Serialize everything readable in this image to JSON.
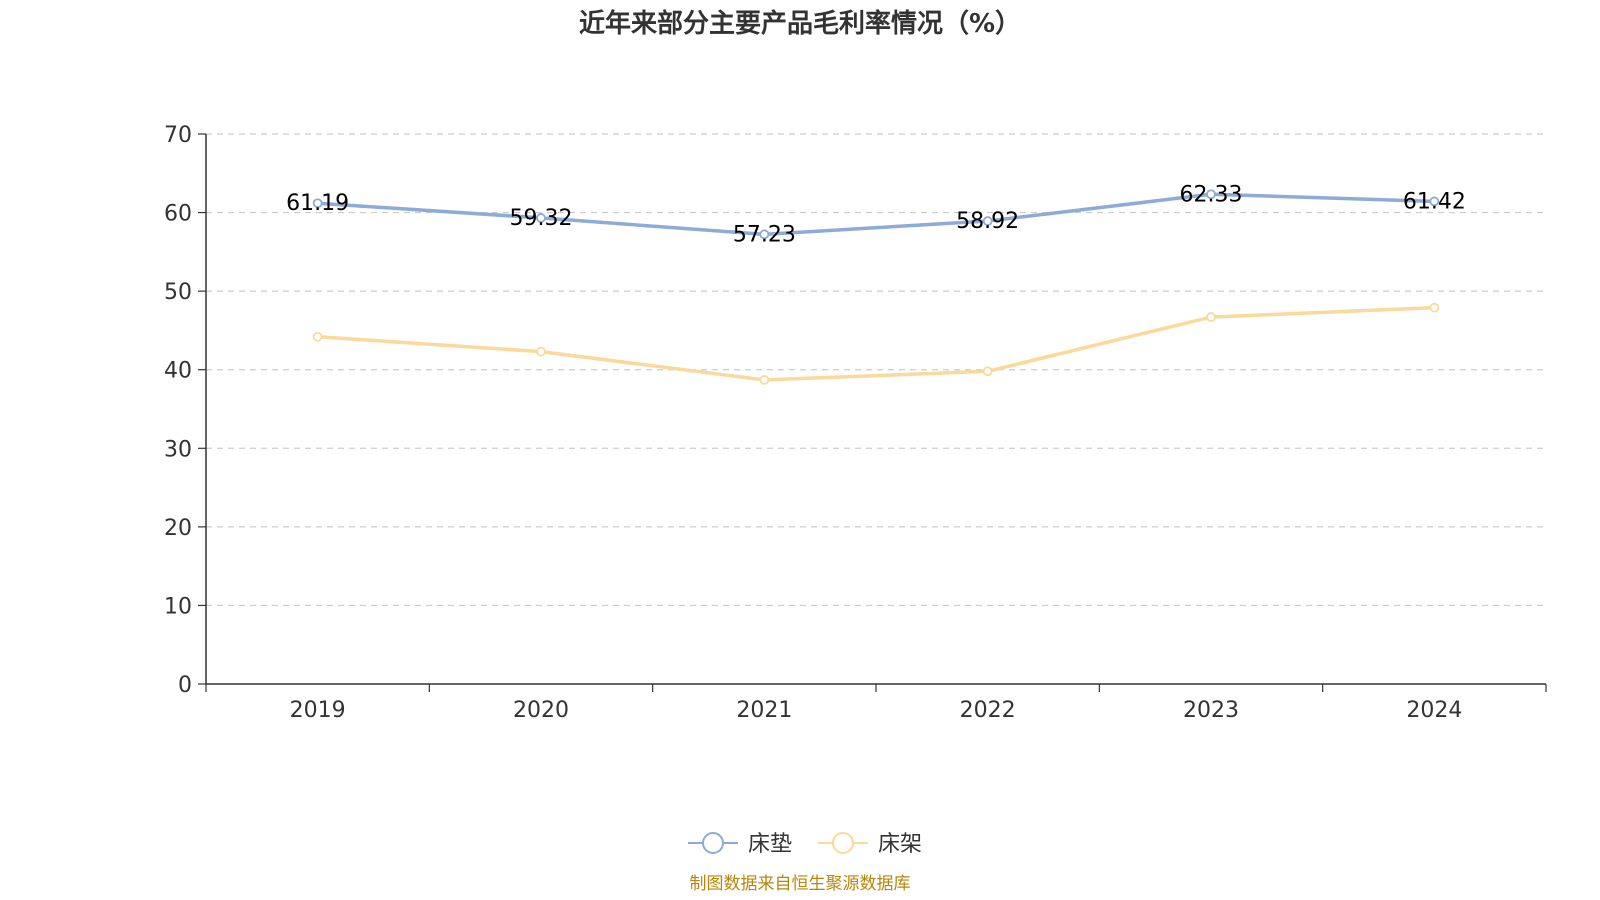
{
  "chart_data": {
    "type": "line",
    "title": "近年来部分主要产品毛利率情况（%）",
    "categories": [
      "2019",
      "2020",
      "2021",
      "2022",
      "2023",
      "2024"
    ],
    "ylim": [
      0,
      70
    ],
    "yticks": [
      "0",
      "10",
      "20",
      "30",
      "40",
      "50",
      "60",
      "70"
    ],
    "grid": true,
    "legend_position": "bottom-center",
    "series": [
      {
        "name": "床垫",
        "values": [
          61.19,
          59.32,
          57.23,
          58.92,
          62.33,
          61.42
        ],
        "labels": [
          "61.19",
          "59.32",
          "57.23",
          "58.92",
          "62.33",
          "61.42"
        ],
        "color": "#8eaad6",
        "show_labels": true
      },
      {
        "name": "床架",
        "values": [
          44.2,
          42.3,
          38.7,
          39.8,
          46.7,
          47.9
        ],
        "color": "#fad99a",
        "show_labels": false
      }
    ],
    "source": "制图数据来自恒生聚源数据库"
  }
}
